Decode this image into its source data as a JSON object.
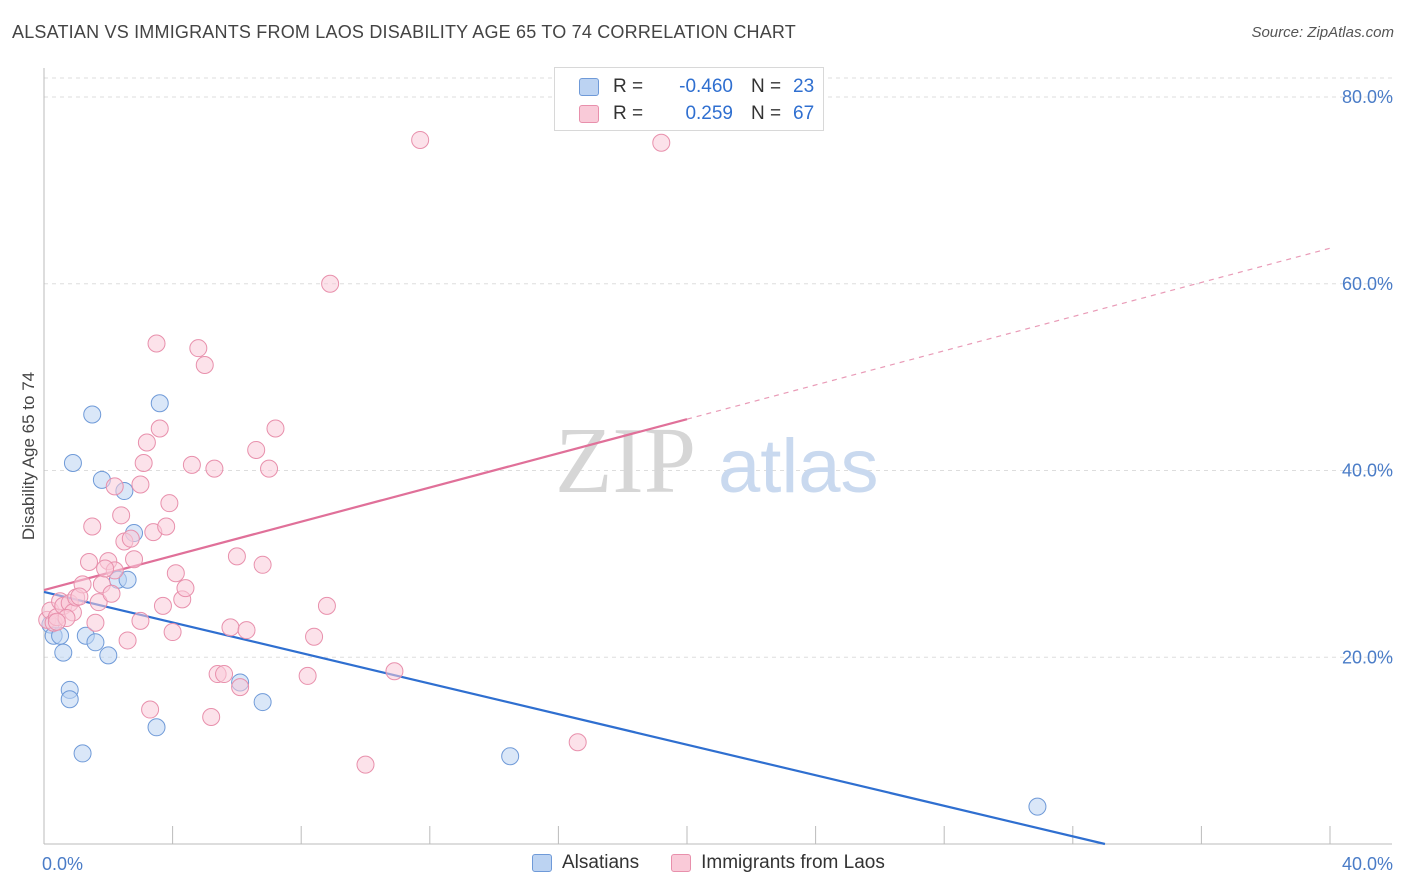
{
  "header": {
    "title": "ALSATIAN VS IMMIGRANTS FROM LAOS DISABILITY AGE 65 TO 74 CORRELATION CHART",
    "source": "Source: ZipAtlas.com"
  },
  "legend": {
    "rows": [
      {
        "r_label": "R =",
        "r_value": "-0.460",
        "n_label": "N =",
        "n_value": "23"
      },
      {
        "r_label": "R =",
        "r_value": "0.259",
        "n_label": "N =",
        "n_value": "67"
      }
    ]
  },
  "bottom_legend": {
    "series_a": "Alsatians",
    "series_b": "Immigrants from Laos"
  },
  "watermark": {
    "zip": "ZIP",
    "atlas": "atlas"
  },
  "colors": {
    "blue": "#2f6fd0",
    "blue_fill": "#bcd3f2",
    "pink": "#e07099",
    "pink_fill": "#f9cad8",
    "grid": "#dddddd"
  },
  "chart_data": {
    "type": "scatter",
    "title": "ALSATIAN VS IMMIGRANTS FROM LAOS DISABILITY AGE 65 TO 74 CORRELATION CHART",
    "xlabel": "",
    "ylabel": "Disability Age 65 to 74",
    "xlim": [
      0,
      40
    ],
    "ylim": [
      0,
      80
    ],
    "x_tick_labels": [
      "0.0%",
      "40.0%"
    ],
    "y_ticks": [
      20,
      40,
      60,
      80
    ],
    "y_tick_labels": [
      "20.0%",
      "40.0%",
      "60.0%",
      "80.0%"
    ],
    "series": [
      {
        "name": "Alsatians",
        "r": -0.46,
        "n": 23,
        "trend": {
          "x0": 0,
          "y0": 27.0,
          "x1": 33.0,
          "y1": 0.0,
          "dashed_to": null
        },
        "points": [
          [
            0.2,
            23.5
          ],
          [
            0.3,
            22.3
          ],
          [
            0.5,
            22.3
          ],
          [
            0.6,
            20.5
          ],
          [
            0.8,
            16.5
          ],
          [
            0.8,
            15.5
          ],
          [
            0.9,
            40.8
          ],
          [
            1.2,
            9.7
          ],
          [
            1.3,
            22.3
          ],
          [
            1.5,
            46.0
          ],
          [
            1.6,
            21.6
          ],
          [
            1.8,
            39.0
          ],
          [
            2.0,
            20.2
          ],
          [
            2.3,
            28.3
          ],
          [
            2.5,
            37.8
          ],
          [
            2.8,
            33.3
          ],
          [
            2.6,
            28.3
          ],
          [
            3.5,
            12.5
          ],
          [
            3.6,
            47.2
          ],
          [
            6.1,
            17.3
          ],
          [
            6.8,
            15.2
          ],
          [
            14.5,
            9.4
          ],
          [
            30.9,
            4.0
          ]
        ]
      },
      {
        "name": "Immigrants from Laos",
        "r": 0.259,
        "n": 67,
        "trend": {
          "x0": 0,
          "y0": 27.2,
          "x1": 20.0,
          "y1": 45.5,
          "dashed_to": [
            40.0,
            63.8
          ]
        },
        "points": [
          [
            0.1,
            24.0
          ],
          [
            0.2,
            25.0
          ],
          [
            0.3,
            23.7
          ],
          [
            0.4,
            24.3
          ],
          [
            0.5,
            26.0
          ],
          [
            0.6,
            25.5
          ],
          [
            0.8,
            25.8
          ],
          [
            0.9,
            24.8
          ],
          [
            1.0,
            26.4
          ],
          [
            1.2,
            27.8
          ],
          [
            1.4,
            30.2
          ],
          [
            1.5,
            34.0
          ],
          [
            1.6,
            23.7
          ],
          [
            1.7,
            25.9
          ],
          [
            1.8,
            27.8
          ],
          [
            2.0,
            30.3
          ],
          [
            2.1,
            26.8
          ],
          [
            2.2,
            29.3
          ],
          [
            2.4,
            35.2
          ],
          [
            2.5,
            32.4
          ],
          [
            2.6,
            21.8
          ],
          [
            2.8,
            30.5
          ],
          [
            3.0,
            38.5
          ],
          [
            3.1,
            40.8
          ],
          [
            3.2,
            43.0
          ],
          [
            3.3,
            14.4
          ],
          [
            3.4,
            33.4
          ],
          [
            3.5,
            53.6
          ],
          [
            3.6,
            44.5
          ],
          [
            3.7,
            25.5
          ],
          [
            3.8,
            34.0
          ],
          [
            3.9,
            36.5
          ],
          [
            4.0,
            22.7
          ],
          [
            4.1,
            29.0
          ],
          [
            4.3,
            26.2
          ],
          [
            4.4,
            27.4
          ],
          [
            4.6,
            40.6
          ],
          [
            4.8,
            53.1
          ],
          [
            5.0,
            51.3
          ],
          [
            5.2,
            13.6
          ],
          [
            5.3,
            40.2
          ],
          [
            5.4,
            18.2
          ],
          [
            5.6,
            18.2
          ],
          [
            5.8,
            23.2
          ],
          [
            6.0,
            30.8
          ],
          [
            6.1,
            16.8
          ],
          [
            6.3,
            22.9
          ],
          [
            6.6,
            42.2
          ],
          [
            6.8,
            29.9
          ],
          [
            7.0,
            40.2
          ],
          [
            7.2,
            44.5
          ],
          [
            8.2,
            18.0
          ],
          [
            8.4,
            22.2
          ],
          [
            8.8,
            25.5
          ],
          [
            8.9,
            60.0
          ],
          [
            10.0,
            8.5
          ],
          [
            10.9,
            18.5
          ],
          [
            11.7,
            75.4
          ],
          [
            16.6,
            10.9
          ],
          [
            19.2,
            75.1
          ],
          [
            2.2,
            38.3
          ],
          [
            1.1,
            26.5
          ],
          [
            0.7,
            24.2
          ],
          [
            0.4,
            23.8
          ],
          [
            2.7,
            32.7
          ],
          [
            3.0,
            23.9
          ],
          [
            1.9,
            29.5
          ]
        ]
      }
    ]
  }
}
